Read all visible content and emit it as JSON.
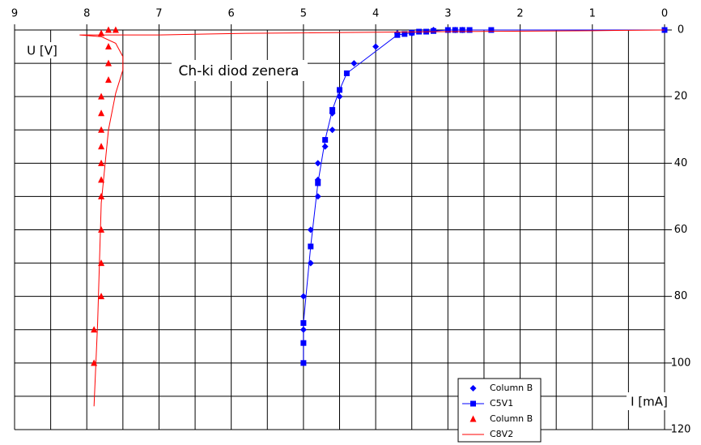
{
  "chart_data": {
    "type": "scatter",
    "title": "Ch-ki diod zenera",
    "y_label": "U [V]",
    "x_label": "I [mA]",
    "xlim": [
      9,
      0
    ],
    "xticks": [
      9,
      8,
      7,
      6,
      5,
      4,
      3,
      2,
      1,
      0
    ],
    "xminorticks": [
      8.5,
      7.5,
      6.5,
      5.5,
      4.5,
      3.5,
      2.5,
      1.5,
      0.5
    ],
    "ylim": [
      0,
      120
    ],
    "yticks": [
      0,
      20,
      40,
      60,
      80,
      100,
      120
    ],
    "yminorticks": [
      10,
      30,
      50,
      70,
      90,
      110
    ],
    "grid": true,
    "legend": "bottom-right",
    "series": [
      {
        "name": "Column B",
        "color": "#0000ff",
        "marker": "diamond",
        "line": false,
        "x": [
          3.7,
          3.5,
          3.2,
          2.9,
          2.8,
          4.0,
          4.3,
          4.5,
          4.6,
          4.6,
          4.7,
          4.8,
          4.8,
          4.8,
          4.9,
          4.9,
          5.0,
          5.0
        ],
        "values": [
          1,
          1,
          0,
          0,
          0,
          5,
          10,
          20,
          25,
          30,
          35,
          40,
          45,
          50,
          60,
          70,
          80,
          90
        ]
      },
      {
        "name": "C5V1",
        "color": "#0000ff",
        "marker": "square",
        "line": true,
        "x": [
          0,
          2.4,
          2.7,
          2.8,
          2.9,
          3.0,
          3.2,
          3.3,
          3.4,
          3.5,
          3.6,
          3.7,
          4.4,
          4.5,
          4.6,
          4.7,
          4.8,
          4.9,
          5.0,
          5.0,
          5.0
        ],
        "values": [
          0,
          0,
          0,
          0,
          0,
          0,
          0.3,
          0.5,
          0.5,
          0.8,
          1.2,
          1.5,
          13,
          18,
          24,
          33,
          46,
          65,
          88,
          94,
          100
        ]
      },
      {
        "name": "Column B",
        "color": "#ff0000",
        "marker": "triangle",
        "line": false,
        "x": [
          7.6,
          7.7,
          7.8,
          7.7,
          7.7,
          7.7,
          7.8,
          7.8,
          7.8,
          7.8,
          7.8,
          7.8,
          7.8,
          7.8,
          7.8,
          7.8,
          7.9,
          7.9
        ],
        "values": [
          0,
          0,
          1,
          5,
          10,
          15,
          20,
          25,
          30,
          35,
          40,
          45,
          50,
          60,
          70,
          80,
          90,
          100
        ]
      },
      {
        "name": "C8V2",
        "color": "#ff0000",
        "marker": "none",
        "line": true,
        "x": [
          0,
          1,
          3,
          5.8,
          7,
          8.1,
          7.8,
          7.6,
          7.5,
          7.5,
          7.6,
          7.7,
          7.8,
          7.85,
          7.9
        ],
        "values": [
          0,
          0.2,
          0.5,
          1,
          1.5,
          1.5,
          2,
          4,
          8,
          12,
          19,
          30,
          52,
          88,
          113
        ]
      }
    ]
  }
}
